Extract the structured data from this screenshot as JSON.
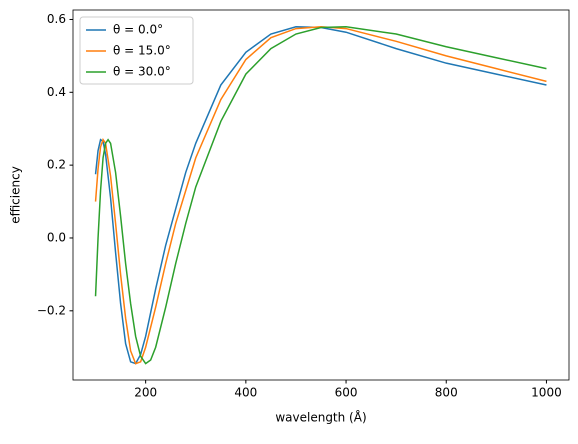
{
  "chart_data": {
    "type": "line",
    "xlabel": "wavelength (Å)",
    "ylabel": "efficiency",
    "xlim": [
      55,
      1045
    ],
    "ylim": [
      -0.39,
      0.626
    ],
    "xticks": [
      200,
      400,
      600,
      800,
      1000
    ],
    "yticks": [
      {
        "value": -0.2,
        "label": "−0.2"
      },
      {
        "value": 0,
        "label": "0.0"
      },
      0.2,
      0.4,
      0.6
    ],
    "legend": "upper left",
    "series": [
      {
        "name": "θ = 0.0°",
        "color": "#1f77b4",
        "x": [
          100,
          105,
          110,
          115,
          120,
          130,
          140,
          150,
          160,
          170,
          180,
          190,
          200,
          220,
          240,
          260,
          280,
          300,
          350,
          400,
          450,
          500,
          550,
          600,
          700,
          800,
          900,
          1000
        ],
        "values": [
          0.175,
          0.24,
          0.27,
          0.265,
          0.23,
          0.11,
          -0.04,
          -0.18,
          -0.29,
          -0.34,
          -0.345,
          -0.32,
          -0.27,
          -0.14,
          -0.02,
          0.08,
          0.18,
          0.26,
          0.42,
          0.51,
          0.56,
          0.58,
          0.578,
          0.565,
          0.52,
          0.48,
          0.45,
          0.42
        ]
      },
      {
        "name": "θ = 15.0°",
        "color": "#ff7f0e",
        "x": [
          100,
          105,
          110,
          115,
          120,
          130,
          140,
          150,
          160,
          170,
          180,
          190,
          200,
          220,
          240,
          260,
          280,
          300,
          350,
          400,
          450,
          500,
          550,
          600,
          700,
          800,
          900,
          1000
        ],
        "values": [
          0.1,
          0.19,
          0.25,
          0.27,
          0.26,
          0.17,
          0.04,
          -0.1,
          -0.22,
          -0.31,
          -0.345,
          -0.34,
          -0.3,
          -0.19,
          -0.07,
          0.04,
          0.13,
          0.22,
          0.38,
          0.49,
          0.55,
          0.575,
          0.58,
          0.575,
          0.54,
          0.5,
          0.465,
          0.43
        ]
      },
      {
        "name": "θ = 30.0°",
        "color": "#2ca02c",
        "x": [
          100,
          105,
          110,
          115,
          120,
          125,
          130,
          140,
          150,
          160,
          170,
          180,
          190,
          200,
          210,
          220,
          240,
          260,
          280,
          300,
          350,
          400,
          450,
          500,
          550,
          600,
          700,
          800,
          900,
          1000
        ],
        "values": [
          -0.16,
          0.0,
          0.13,
          0.22,
          0.26,
          0.27,
          0.26,
          0.18,
          0.06,
          -0.07,
          -0.18,
          -0.27,
          -0.325,
          -0.345,
          -0.335,
          -0.3,
          -0.19,
          -0.07,
          0.04,
          0.14,
          0.32,
          0.45,
          0.52,
          0.56,
          0.578,
          0.58,
          0.56,
          0.525,
          0.495,
          0.465
        ]
      }
    ]
  }
}
